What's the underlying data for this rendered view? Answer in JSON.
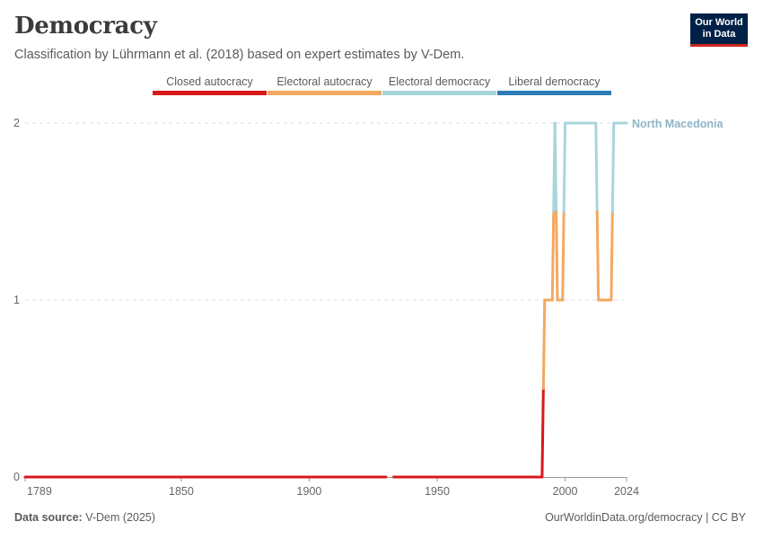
{
  "header": {
    "title": "Democracy",
    "subtitle": "Classification by Lührmann et al. (2018) based on expert estimates by V-Dem."
  },
  "logo": {
    "line1": "Our World",
    "line2": "in Data"
  },
  "legend": [
    {
      "label": "Closed autocracy",
      "color": "#d7191c"
    },
    {
      "label": "Electoral autocracy",
      "color": "#f4a861"
    },
    {
      "label": "Electoral democracy",
      "color": "#a8d5dc"
    },
    {
      "label": "Liberal democracy",
      "color": "#2c7bb6"
    }
  ],
  "footer": {
    "source_label": "Data source:",
    "source_value": "V-Dem (2025)",
    "right": "OurWorldinData.org/democracy | CC BY"
  },
  "chart_data": {
    "type": "line",
    "title": "Democracy",
    "xlabel": "",
    "ylabel": "",
    "xlim": [
      1789,
      2024
    ],
    "ylim": [
      0,
      2
    ],
    "x_ticks": [
      1789,
      1850,
      1900,
      1950,
      2000,
      2024
    ],
    "y_ticks": [
      0,
      1,
      2
    ],
    "grid": "horizontal dashed",
    "legend_position": "top",
    "series": [
      {
        "name": "North Macedonia",
        "label_color": "#8fb5c6",
        "points": [
          [
            1789,
            0
          ],
          [
            1930,
            0
          ],
          [
            1933,
            0
          ],
          [
            1991,
            0
          ],
          [
            1992,
            1
          ],
          [
            1995,
            1
          ],
          [
            1996,
            2
          ],
          [
            1997,
            1
          ],
          [
            1999,
            1
          ],
          [
            2000,
            2
          ],
          [
            2012,
            2
          ],
          [
            2013,
            1
          ],
          [
            2018,
            1
          ],
          [
            2019,
            2
          ],
          [
            2024,
            2
          ]
        ]
      }
    ]
  }
}
